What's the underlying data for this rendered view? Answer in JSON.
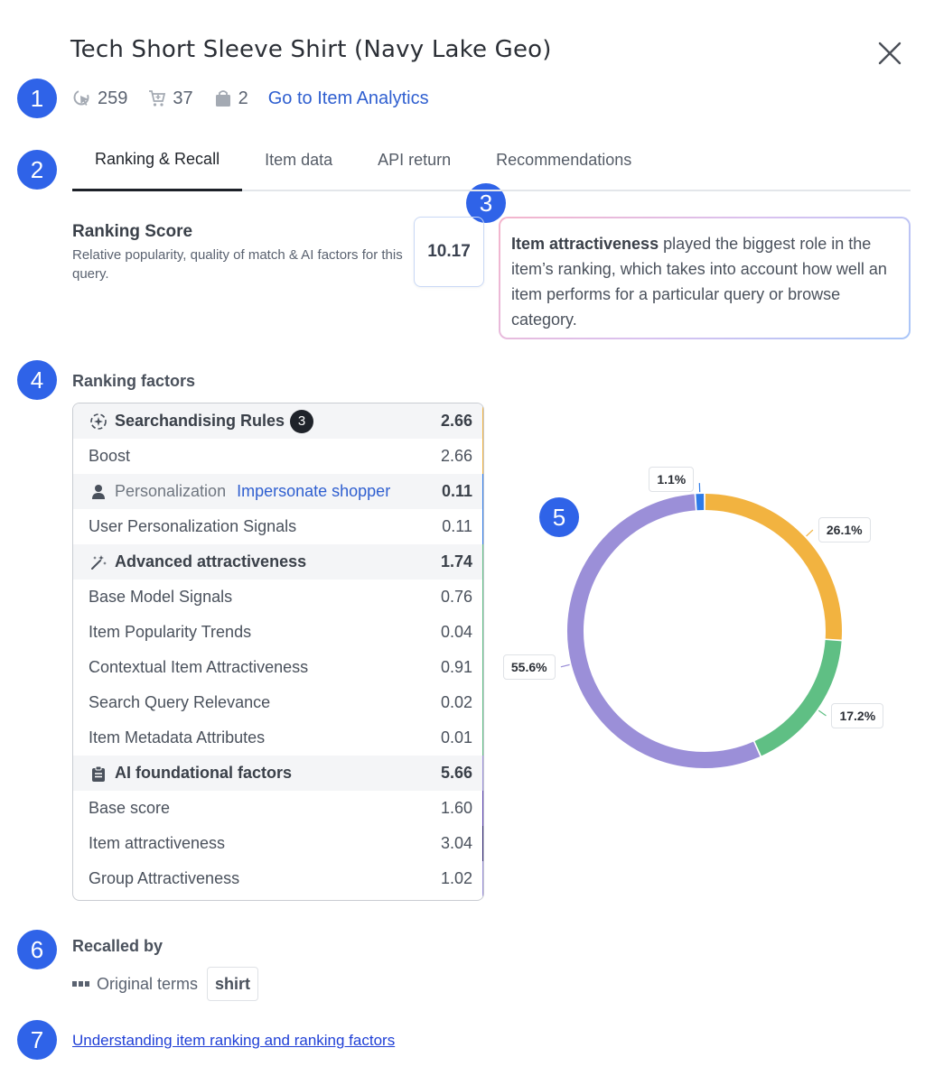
{
  "header": {
    "title": "Tech Short Sleeve Shirt (Navy Lake Geo)",
    "close_icon": "close-icon"
  },
  "markers": [
    "1",
    "2",
    "3",
    "4",
    "5",
    "6",
    "7"
  ],
  "stats": {
    "clicks": "259",
    "add_to_cart": "37",
    "purchases": "2",
    "analytics_link": "Go to Item Analytics"
  },
  "tabs": [
    {
      "label": "Ranking & Recall",
      "active": true
    },
    {
      "label": "Item data",
      "active": false
    },
    {
      "label": "API return",
      "active": false
    },
    {
      "label": "Recommendations",
      "active": false
    }
  ],
  "ranking": {
    "title": "Ranking Score",
    "description": "Relative popularity, quality of match & AI factors for this query.",
    "score": "10.17"
  },
  "insight": {
    "bold": "Item attractiveness",
    "text": " played the biggest role in the item’s ranking, which takes into account how well an item performs for a particular query or browse category."
  },
  "factors": {
    "label": "Ranking factors",
    "groups": [
      {
        "name": "Searchandising Rules",
        "value": "2.66",
        "badge": "3",
        "icon": "sparkle-rules-icon",
        "color": "#f2b340",
        "items": [
          {
            "name": "Boost",
            "value": "2.66"
          }
        ]
      },
      {
        "name": "Personalization",
        "value": "0.11",
        "link": "Impersonate shopper",
        "icon": "person-icon",
        "color": "#2f7be8",
        "items": [
          {
            "name": "User Personalization Signals",
            "value": "0.11"
          }
        ]
      },
      {
        "name": "Advanced attractiveness",
        "value": "1.74",
        "icon": "magic-wand-icon",
        "color": "#5fbf84",
        "items": [
          {
            "name": "Base Model Signals",
            "value": "0.76"
          },
          {
            "name": "Item Popularity Trends",
            "value": "0.04"
          },
          {
            "name": "Contextual Item Attractiveness",
            "value": "0.91"
          },
          {
            "name": "Search Query Relevance",
            "value": "0.02"
          },
          {
            "name": "Item Metadata Attributes",
            "value": "0.01"
          }
        ]
      },
      {
        "name": "AI foundational factors",
        "value": "5.66",
        "icon": "clipboard-icon",
        "color": "#9b8fd8",
        "items": [
          {
            "name": "Base score",
            "value": "1.60",
            "color": "#5a3fb0"
          },
          {
            "name": "Item attractiveness",
            "value": "3.04",
            "color": "#2a1f6e"
          },
          {
            "name": "Group Attractiveness",
            "value": "1.02",
            "color": "#9b8fd8"
          }
        ]
      }
    ]
  },
  "chart_data": {
    "type": "pie",
    "donut": true,
    "slices": [
      {
        "label": "26.1%",
        "value": 26.1,
        "color": "#f2b340"
      },
      {
        "label": "17.2%",
        "value": 17.2,
        "color": "#5fbf84"
      },
      {
        "label": "55.6%",
        "value": 55.6,
        "color": "#9b8fd8"
      },
      {
        "label": "1.1%",
        "value": 1.1,
        "color": "#2f7be8"
      }
    ]
  },
  "recall": {
    "label": "Recalled by",
    "type_icon": "abc-terms-icon",
    "type": "Original terms",
    "term": "shirt"
  },
  "help_link": "Understanding item ranking and ranking factors"
}
